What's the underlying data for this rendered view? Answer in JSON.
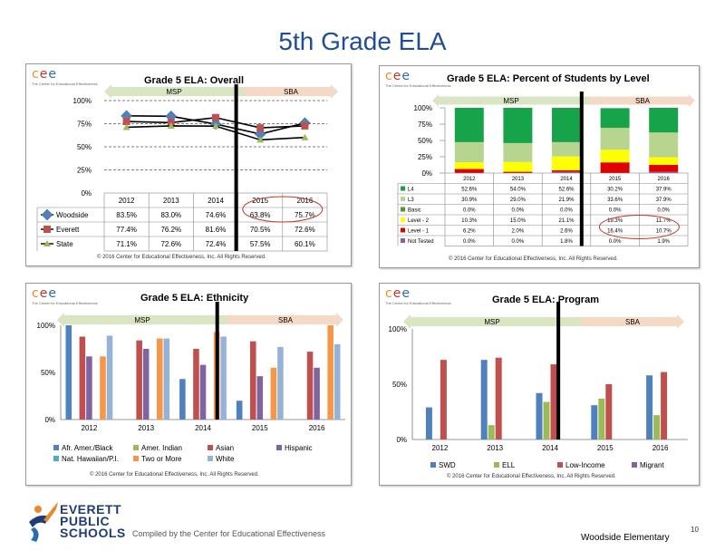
{
  "page_title": "5th Grade ELA",
  "logo": {
    "letters": "cee",
    "tagline": "The Center for Educational Effectiveness"
  },
  "copyright": "© 2016 Center for Educational Effectiveness, Inc. All Rights Reserved.",
  "arrows": {
    "left": "MSP",
    "right": "SBA"
  },
  "footer": {
    "district_line1": "EVERETT",
    "district_line2": "PUBLIC",
    "district_line3": "SCHOOLS",
    "compiled": "Compiled by the Center for Educational Effectiveness",
    "school": "Woodside Elementary",
    "page_number": "10"
  },
  "colors": {
    "title": "#1f4e96",
    "msp_arrow": "#d9e5c3",
    "sba_arrow": "#f4d9c6",
    "woodside": "#4f81bd",
    "everett": "#c0504d",
    "state": "#9bbb59",
    "L4": "#17a34a",
    "L3": "#b7d58e",
    "Basic": "#4e9a28",
    "Level2": "#ffff00",
    "Level1": "#e00000",
    "afr": "#4f81bd",
    "amind": "#9bbb59",
    "asian": "#c0504d",
    "hisp": "#8064a2",
    "nat": "#4bacc6",
    "two": "#f79646",
    "white": "#95b3d7",
    "swd": "#4f81bd",
    "ell": "#9bbb59",
    "lowinc": "#c0504d",
    "migrant": "#8064a2"
  },
  "chart_data": [
    {
      "type": "line",
      "title": "Grade 5 ELA: Overall",
      "categories": [
        "2012",
        "2013",
        "2014",
        "2015",
        "2016"
      ],
      "yticks": [
        "0%",
        "25%",
        "50%",
        "75%",
        "100%"
      ],
      "ylim": [
        0,
        100
      ],
      "series": [
        {
          "name": "Woodside",
          "values": [
            83.5,
            83.0,
            74.6,
            63.8,
            75.7
          ],
          "labels": [
            "83.5%",
            "83.0%",
            "74.6%",
            "63.8%",
            "75.7%"
          ]
        },
        {
          "name": "Everett",
          "values": [
            77.4,
            76.2,
            81.6,
            70.5,
            72.6
          ],
          "labels": [
            "77.4%",
            "76.2%",
            "81.6%",
            "70.5%",
            "72.6%"
          ]
        },
        {
          "name": "State",
          "values": [
            71.1,
            72.6,
            72.4,
            57.5,
            60.1
          ],
          "labels": [
            "71.1%",
            "72.6%",
            "72.4%",
            "57.5%",
            "60.1%"
          ]
        }
      ],
      "grid": "dashed"
    },
    {
      "type": "bar",
      "stacked": true,
      "title": "Grade 5 ELA: Percent of Students by Level",
      "categories": [
        "2012",
        "2013",
        "2014",
        "2015",
        "2016"
      ],
      "yticks": [
        "0%",
        "25%",
        "50%",
        "75%",
        "100%"
      ],
      "ylim": [
        0,
        100
      ],
      "series": [
        {
          "name": "Not Tested",
          "values": [
            0.0,
            0.0,
            1.8,
            0.0,
            1.9
          ],
          "labels": [
            "0.0%",
            "0.0%",
            "1.8%",
            "0.0%",
            "1.9%"
          ]
        },
        {
          "name": "Level - 1",
          "values": [
            6.2,
            2.0,
            2.6,
            16.4,
            10.7
          ],
          "labels": [
            "6.2%",
            "2.0%",
            "2.6%",
            "16.4%",
            "10.7%"
          ]
        },
        {
          "name": "Level - 2",
          "values": [
            10.3,
            15.0,
            21.1,
            19.3,
            11.7
          ],
          "labels": [
            "10.3%",
            "15.0%",
            "21.1%",
            "19.3%",
            "11.7%"
          ]
        },
        {
          "name": "Basic",
          "values": [
            0.0,
            0.0,
            0.0,
            0.0,
            0.0
          ],
          "labels": [
            "0.0%",
            "0.0%",
            "0.0%",
            "0.0%",
            "0.0%"
          ]
        },
        {
          "name": "L3",
          "values": [
            30.9,
            29.0,
            21.9,
            33.6,
            37.9
          ],
          "labels": [
            "30.9%",
            "29.0%",
            "21.9%",
            "33.6%",
            "37.9%"
          ]
        },
        {
          "name": "L4",
          "values": [
            52.6,
            54.0,
            52.6,
            30.2,
            37.9
          ],
          "labels": [
            "52.6%",
            "54.0%",
            "52.6%",
            "30.2%",
            "37.9%"
          ]
        }
      ],
      "table_order": [
        "L4",
        "L3",
        "Basic",
        "Level - 2",
        "Level - 1",
        "Not Tested"
      ]
    },
    {
      "type": "bar",
      "title": "Grade 5 ELA: Ethnicity",
      "categories": [
        "2012",
        "2013",
        "2014",
        "2015",
        "2016"
      ],
      "yticks": [
        "0%",
        "50%",
        "100%"
      ],
      "ylim": [
        0,
        100
      ],
      "series": [
        {
          "name": "Afr. Amer./Black",
          "values": [
            100,
            0,
            43,
            20,
            0
          ]
        },
        {
          "name": "Amer. Indian",
          "values": [
            0,
            0,
            0,
            0,
            0
          ]
        },
        {
          "name": "Asian",
          "values": [
            88,
            84,
            75,
            83,
            72
          ]
        },
        {
          "name": "Hispanic",
          "values": [
            67,
            75,
            58,
            46,
            55
          ]
        },
        {
          "name": "Nat. Hawaiian/P.I.",
          "values": [
            0,
            0,
            0,
            0,
            0
          ]
        },
        {
          "name": "Two or More",
          "values": [
            67,
            86,
            93,
            55,
            100
          ]
        },
        {
          "name": "White",
          "values": [
            89,
            86,
            88,
            77,
            80
          ]
        }
      ]
    },
    {
      "type": "bar",
      "title": "Grade 5 ELA: Program",
      "categories": [
        "2012",
        "2013",
        "2014",
        "2015",
        "2016"
      ],
      "yticks": [
        "0%",
        "50%",
        "100%"
      ],
      "ylim": [
        0,
        100
      ],
      "series": [
        {
          "name": "SWD",
          "values": [
            29,
            72,
            42,
            31,
            58
          ]
        },
        {
          "name": "ELL",
          "values": [
            0,
            13,
            34,
            37,
            22
          ]
        },
        {
          "name": "Low-Income",
          "values": [
            72,
            74,
            68,
            50,
            61
          ]
        },
        {
          "name": "Migrant",
          "values": [
            0,
            0,
            0,
            0,
            0
          ]
        }
      ]
    }
  ]
}
